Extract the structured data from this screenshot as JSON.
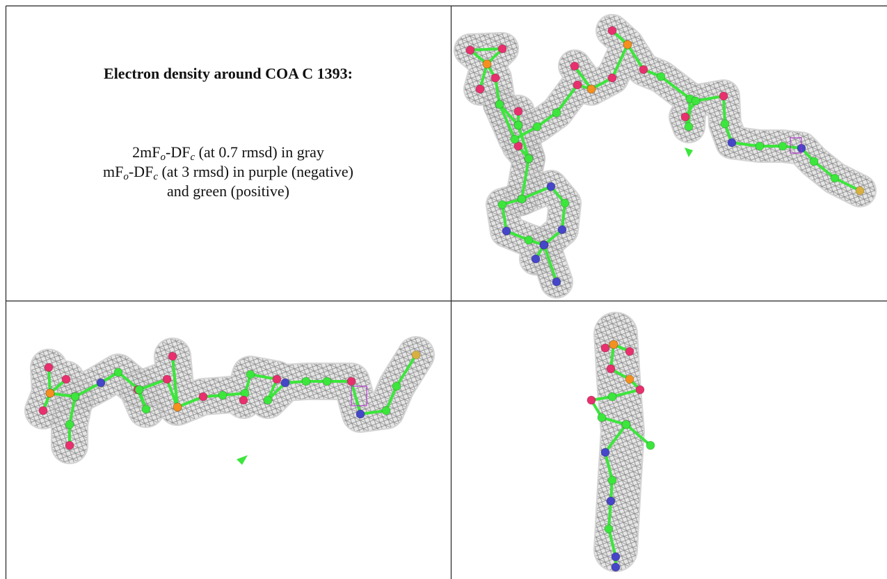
{
  "caption": {
    "title": "Electron density around COA C 1393:",
    "lines": [
      [
        "2mF",
        "o",
        "-DF",
        "c",
        " (at 0.7 rmsd) in gray"
      ],
      [
        "mF",
        "o",
        "-DF",
        "c",
        " (at 3 rmsd) in purple (negative)"
      ],
      [
        "and green (positive)"
      ]
    ]
  }
}
